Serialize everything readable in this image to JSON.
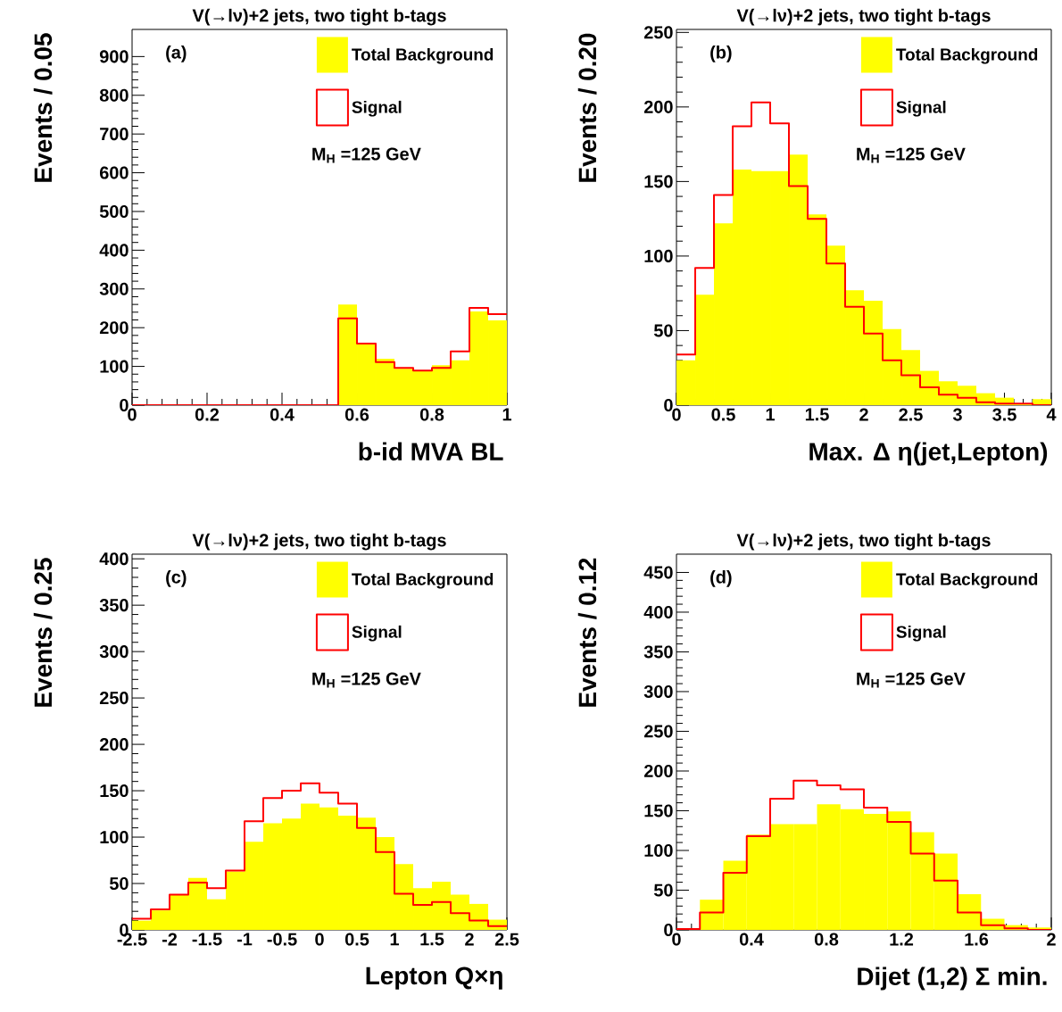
{
  "chart_data": [
    {
      "type": "histogram",
      "title": "V(→lν)+2 jets, two tight b-tags",
      "xlabel": "b-id MVA BL",
      "ylabel": "Events / 0.05",
      "annotations": [
        "(a)",
        "M$_{H}$ =125 GeV"
      ],
      "legend": "top right",
      "bins": [
        0,
        0.05,
        0.1,
        0.15,
        0.2,
        0.25,
        0.3,
        0.35,
        0.4,
        0.45,
        0.5,
        0.55,
        0.6,
        0.65,
        0.7,
        0.75,
        0.8,
        0.85,
        0.9,
        0.95,
        1
      ],
      "xlim": [
        0,
        1
      ],
      "xticks": [
        0,
        0.2,
        0.4,
        0.6,
        0.8,
        1
      ],
      "ylim": [
        0,
        970
      ],
      "yticks": [
        0,
        100,
        200,
        300,
        400,
        500,
        600,
        700,
        800,
        900
      ],
      "series": [
        {
          "name": "Total Background",
          "color": "#ffff00",
          "values": [
            0,
            0,
            0,
            0,
            0,
            0,
            0,
            0,
            0,
            0,
            0,
            260,
            161,
            120,
            94,
            89,
            103,
            116,
            242,
            219
          ]
        },
        {
          "name": "Signal",
          "type": "step",
          "color": "#ff0000",
          "x": [
            0,
            0.05,
            0.1,
            0.15,
            0.2,
            0.25,
            0.3,
            0.35,
            0.4,
            0.45,
            0.5,
            0.55,
            0.6,
            0.65,
            0.7,
            0.75,
            0.8,
            0.85,
            0.9,
            0.95,
            1
          ],
          "values": [
            0,
            0,
            0,
            0,
            0,
            0,
            0,
            0,
            0,
            0,
            0,
            224,
            159,
            111,
            96,
            89,
            96,
            139,
            251,
            235,
            235
          ]
        }
      ]
    },
    {
      "type": "histogram",
      "title": "V(→lν)+2 jets, two tight b-tags",
      "xlabel": "Max. Δ η(jet,Lepton)",
      "ylabel": "Events / 0.20",
      "annotations": [
        "(b)",
        "M$_{H}$ =125 GeV"
      ],
      "legend": "top right",
      "bins": [
        0,
        0.2,
        0.4,
        0.6,
        0.8,
        1,
        1.2,
        1.4,
        1.6,
        1.8,
        2,
        2.2,
        2.4,
        2.6,
        2.8,
        3,
        3.2,
        3.4,
        3.6,
        3.8,
        4
      ],
      "xlim": [
        0,
        4
      ],
      "xticks": [
        0,
        0.5,
        1,
        1.5,
        2,
        2.5,
        3,
        3.5,
        4
      ],
      "ylim": [
        0,
        252
      ],
      "yticks": [
        0,
        50,
        100,
        150,
        200,
        250
      ],
      "series": [
        {
          "name": "Total Background",
          "color": "#ffff00",
          "values": [
            30,
            74,
            122,
            158,
            157,
            157,
            168,
            128,
            107,
            77,
            70,
            51,
            37,
            23,
            16,
            13,
            8,
            5,
            1,
            4
          ]
        },
        {
          "name": "Signal",
          "type": "step",
          "color": "#ff0000",
          "x": [
            0,
            0.2,
            0.4,
            0.6,
            0.8,
            1,
            1.2,
            1.4,
            1.6,
            1.8,
            2,
            2.2,
            2.4,
            2.6,
            2.8,
            3,
            3.2,
            3.4,
            3.6,
            3.8,
            4
          ],
          "values": [
            34,
            92,
            141,
            187,
            203,
            189,
            147,
            125,
            95,
            66,
            48,
            30,
            20,
            12,
            7,
            5,
            2,
            1,
            1,
            0,
            0
          ]
        }
      ]
    },
    {
      "type": "histogram",
      "title": "V(→lν)+2 jets, two tight b-tags",
      "xlabel": "Lepton Q×η",
      "ylabel": "Events / 0.25",
      "annotations": [
        "(c)",
        "M$_{H}$ =125 GeV"
      ],
      "legend": "top right",
      "bins": [
        -2.5,
        -2.25,
        -2,
        -1.75,
        -1.5,
        -1.25,
        -1,
        -0.75,
        -0.5,
        -0.25,
        0,
        0.25,
        0.5,
        0.75,
        1,
        1.25,
        1.5,
        1.75,
        2,
        2.25,
        2.5
      ],
      "xlim": [
        -2.5,
        2.5
      ],
      "xticks": [
        -2.5,
        -2,
        -1.5,
        -1,
        -0.5,
        0,
        0.5,
        1,
        1.5,
        2,
        2.5
      ],
      "ylim": [
        0,
        405
      ],
      "yticks": [
        0,
        50,
        100,
        150,
        200,
        250,
        300,
        350,
        400
      ],
      "series": [
        {
          "name": "Total Background",
          "color": "#ffff00",
          "values": [
            10,
            21,
            38,
            56,
            33,
            63,
            95,
            115,
            120,
            136,
            132,
            123,
            121,
            100,
            71,
            45,
            52,
            38,
            28,
            11
          ]
        },
        {
          "name": "Signal",
          "type": "step",
          "color": "#ff0000",
          "x": [
            -2.5,
            -2.25,
            -2,
            -1.75,
            -1.5,
            -1.25,
            -1,
            -0.75,
            -0.5,
            -0.25,
            0,
            0.25,
            0.5,
            0.75,
            1,
            1.25,
            1.5,
            1.75,
            2,
            2.25,
            2.5
          ],
          "values": [
            12,
            22,
            38,
            51,
            45,
            64,
            117,
            142,
            150,
            158,
            148,
            136,
            110,
            84,
            39,
            27,
            30,
            18,
            10,
            4,
            4
          ]
        }
      ]
    },
    {
      "type": "histogram",
      "title": "V(→lν)+2 jets, two tight b-tags",
      "xlabel": "Dijet (1,2) Σ min.",
      "ylabel": "Events / 0.12",
      "annotations": [
        "(d)",
        "M$_{H}$ =125 GeV"
      ],
      "legend": "top right",
      "bins": [
        0,
        0.125,
        0.25,
        0.375,
        0.5,
        0.625,
        0.75,
        0.875,
        1,
        1.125,
        1.25,
        1.375,
        1.5,
        1.625,
        1.75,
        1.875,
        2
      ],
      "xlim": [
        0,
        2
      ],
      "xticks": [
        0,
        0.4,
        0.8,
        1.2,
        1.6,
        2
      ],
      "ylim": [
        0,
        473
      ],
      "yticks": [
        0,
        50,
        100,
        150,
        200,
        250,
        300,
        350,
        400,
        450
      ],
      "series": [
        {
          "name": "Total Background",
          "color": "#ffff00",
          "values": [
            0,
            38,
            87,
            120,
            133,
            133,
            158,
            152,
            146,
            149,
            123,
            96,
            45,
            14,
            6,
            3
          ]
        },
        {
          "name": "Signal",
          "type": "step",
          "color": "#ff0000",
          "x": [
            0,
            0.125,
            0.25,
            0.375,
            0.5,
            0.625,
            0.75,
            0.875,
            1,
            1.125,
            1.25,
            1.375,
            1.5,
            1.625,
            1.75,
            1.875,
            2
          ],
          "values": [
            1,
            22,
            72,
            118,
            165,
            188,
            182,
            177,
            154,
            136,
            96,
            62,
            22,
            6,
            2,
            0,
            0
          ]
        }
      ]
    }
  ]
}
